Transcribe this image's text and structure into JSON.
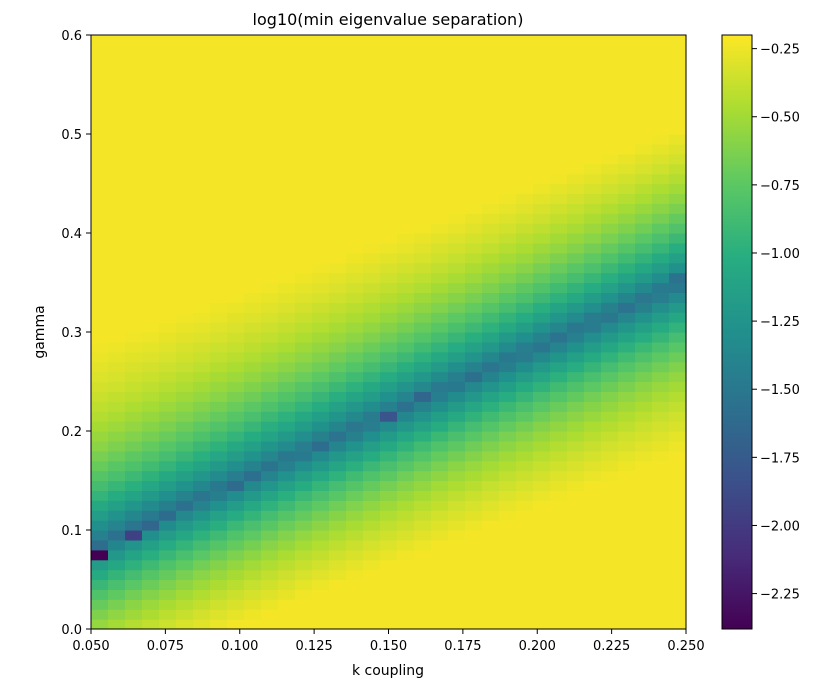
{
  "chart_data": {
    "type": "heatmap",
    "title": "log10(min eigenvalue separation)",
    "xlabel": "k coupling",
    "ylabel": "gamma",
    "xlim": [
      0.05,
      0.25
    ],
    "ylim": [
      0.0,
      0.6
    ],
    "x_ticks": [
      "0.050",
      "0.075",
      "0.100",
      "0.125",
      "0.150",
      "0.175",
      "0.200",
      "0.225",
      "0.250"
    ],
    "y_ticks": [
      "0.0",
      "0.1",
      "0.2",
      "0.3",
      "0.4",
      "0.5",
      "0.6"
    ],
    "grid": false,
    "colormap": "viridis",
    "color_range": [
      -2.38,
      -0.2
    ],
    "colorbar_ticks": [
      "−0.25",
      "−0.50",
      "−0.75",
      "−1.00",
      "−1.25",
      "−1.50",
      "−1.75",
      "−2.00",
      "−2.25"
    ],
    "colorbar_tick_values": [
      -0.25,
      -0.5,
      -0.75,
      -1.0,
      -1.25,
      -1.5,
      -1.75,
      -2.0,
      -2.25
    ],
    "grid_size": {
      "nx": 35,
      "ny": 60
    },
    "model": "value = max(-2.38, min(-0.23, -1.55 + 1.45*(1 - exp(-|gamma - (0.0772 + 1.382*(k - 0.05))| / 0.085)) + 0.5*(gamma - 0.3)*(gamma > ridge ? 1 : -1)))",
    "minimum_points": [
      {
        "k": 0.053,
        "gamma": 0.077,
        "value": -2.38
      },
      {
        "k": 0.064,
        "gamma": 0.093,
        "value": -1.95
      },
      {
        "k": 0.15,
        "gamma": 0.215,
        "value": -1.8
      },
      {
        "k": 0.161,
        "gamma": 0.233,
        "value": -1.65
      },
      {
        "k": 0.247,
        "gamma": 0.353,
        "value": -1.55
      }
    ]
  }
}
